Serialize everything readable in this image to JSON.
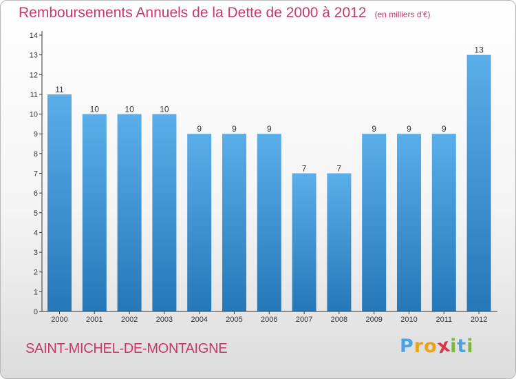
{
  "header": {
    "title": "Remboursements Annuels de la Dette de 2000 à 2012",
    "unit": "(en milliers d'€)"
  },
  "footer": {
    "commune": "SAINT-MICHEL-DE-MONTAIGNE",
    "logo_letters": [
      "P",
      "r",
      "o",
      "x",
      "i",
      "t",
      "i"
    ],
    "logo_colors": [
      "#4ba3e0",
      "#e8a21f",
      "#e8a21f",
      "#d7364a",
      "#7cb73f",
      "#4ba3e0",
      "#7cb73f"
    ]
  },
  "colors": {
    "bar_top": "#5aaee9",
    "bar_bottom": "#2677b8",
    "axis": "#333333",
    "title": "#c8386a"
  },
  "chart_data": {
    "type": "bar",
    "categories": [
      "2000",
      "2001",
      "2002",
      "2003",
      "2004",
      "2005",
      "2006",
      "2007",
      "2008",
      "2009",
      "2010",
      "2011",
      "2012"
    ],
    "values": [
      11,
      10,
      10,
      10,
      9,
      9,
      9,
      7,
      7,
      9,
      9,
      9,
      13
    ],
    "data_labels": [
      "11",
      "10",
      "10",
      "10",
      "9",
      "9",
      "9",
      "7",
      "7",
      "9",
      "9",
      "9",
      "13"
    ],
    "y_ticks": [
      "0",
      "1",
      "2",
      "3",
      "4",
      "5",
      "6",
      "7",
      "8",
      "9",
      "10",
      "11",
      "12",
      "13",
      "14"
    ],
    "ylim": [
      0,
      14
    ],
    "title": "Remboursements Annuels de la Dette de 2000 à 2012",
    "xlabel": "",
    "ylabel": "",
    "grid": false,
    "legend": "none"
  }
}
